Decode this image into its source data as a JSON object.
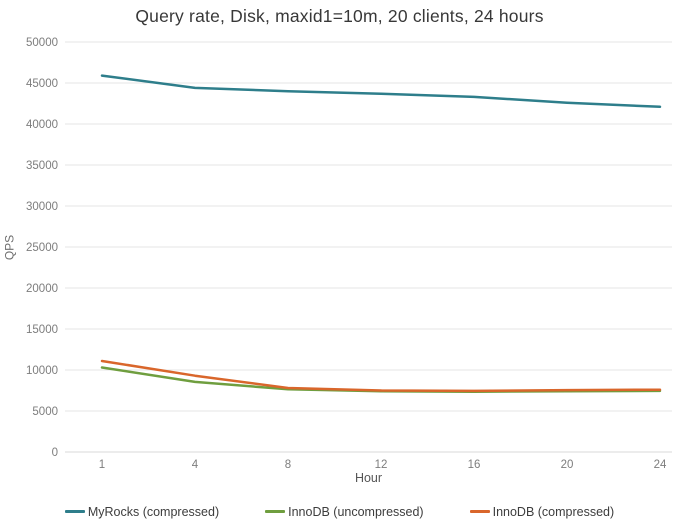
{
  "chart_data": {
    "type": "line",
    "title": "Query rate, Disk, maxid1=10m, 20 clients, 24 hours",
    "xlabel": "Hour",
    "ylabel": "QPS",
    "categories": [
      1,
      4,
      8,
      12,
      16,
      20,
      24
    ],
    "ylim": [
      0,
      50000
    ],
    "ytick_step": 5000,
    "grid": "horizontal",
    "legend_position": "bottom",
    "series": [
      {
        "name": "MyRocks (compressed)",
        "color": "#2e7e8b",
        "values": [
          45900,
          44400,
          44000,
          43700,
          43300,
          42600,
          42100
        ]
      },
      {
        "name": "InnoDB (uncompressed)",
        "color": "#6f9e3f",
        "values": [
          10300,
          8550,
          7650,
          7400,
          7350,
          7400,
          7450
        ]
      },
      {
        "name": "InnoDB (compressed)",
        "color": "#d9662b",
        "values": [
          11100,
          9300,
          7800,
          7500,
          7450,
          7550,
          7600
        ]
      }
    ],
    "colors": {
      "grid": "#e4e4e4",
      "axis_line": "#d8d8d8",
      "tick_text": "#7d7d7d",
      "title_text": "#383838"
    }
  }
}
